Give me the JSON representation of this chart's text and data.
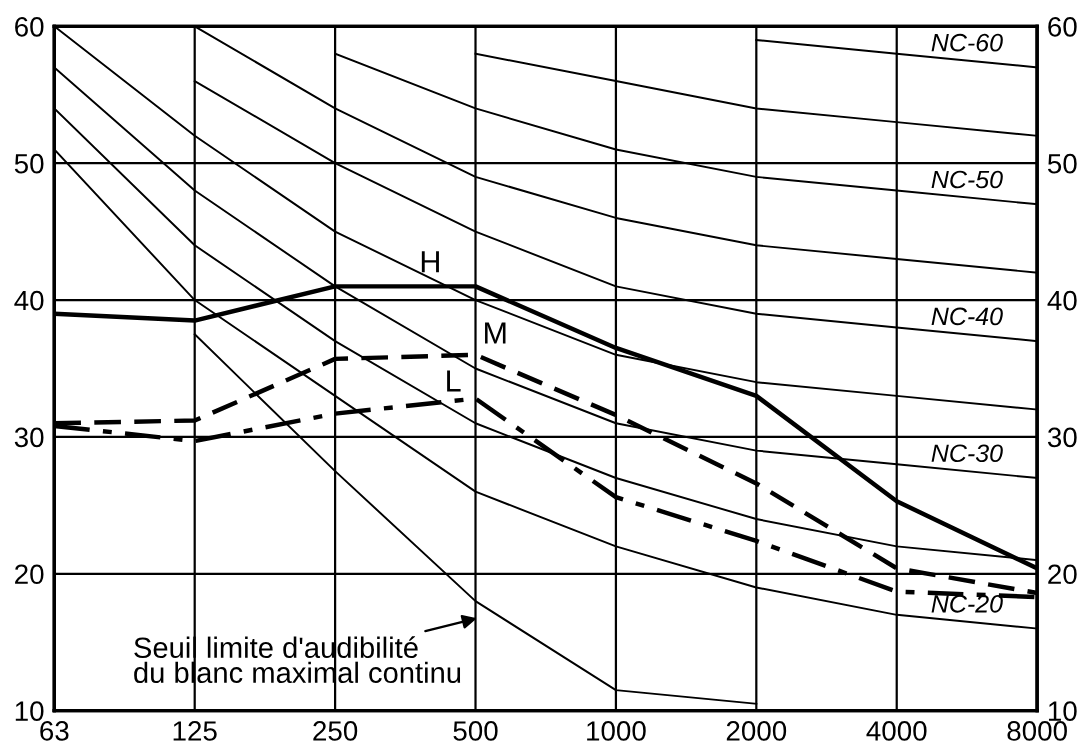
{
  "chart_data": {
    "type": "line",
    "categories": [
      "63",
      "125",
      "250",
      "500",
      "1000",
      "2000",
      "4000",
      "8000"
    ],
    "series": [
      {
        "name": "NC-20",
        "color": "#000000",
        "values": [
          51,
          40,
          33,
          26,
          22,
          19,
          17,
          16
        ]
      },
      {
        "color": "#000000",
        "values": [
          54,
          44,
          37,
          31,
          27,
          24,
          22,
          21
        ]
      },
      {
        "name": "NC-30",
        "color": "#000000",
        "values": [
          57,
          48,
          41,
          35,
          31,
          29,
          28,
          27
        ]
      },
      {
        "color": "#000000",
        "values": [
          60,
          52,
          45,
          40,
          36,
          34,
          33,
          32
        ]
      },
      {
        "name": "NC-40",
        "color": "#000000",
        "values": [
          null,
          56,
          50,
          45,
          41,
          39,
          38,
          37
        ]
      },
      {
        "color": "#000000",
        "values": [
          null,
          60,
          54,
          49,
          46,
          44,
          43,
          42
        ]
      },
      {
        "name": "NC-50",
        "color": "#000000",
        "values": [
          null,
          null,
          58,
          54,
          51,
          49,
          48,
          47
        ]
      },
      {
        "color": "#000000",
        "values": [
          null,
          null,
          null,
          58,
          56,
          54,
          53,
          52
        ]
      },
      {
        "name": "NC-60",
        "color": "#000000",
        "values": [
          null,
          null,
          null,
          null,
          null,
          59,
          58,
          57
        ]
      },
      {
        "color": "#000000",
        "values": [
          null,
          37.5,
          27.5,
          18,
          11.5,
          10.5,
          null,
          null
        ]
      },
      {
        "name": "H",
        "color": "#000000",
        "line_style": "solid",
        "values": [
          39,
          38.5,
          41,
          41,
          36.5,
          33,
          25.3,
          20.4
        ]
      },
      {
        "name": "M",
        "color": "#000000",
        "line_style": "dashed",
        "values": [
          31,
          31.2,
          35.7,
          36,
          31.6,
          26.6,
          20.4,
          18.6
        ]
      },
      {
        "name": "L",
        "color": "#000000",
        "line_style": "dashdot",
        "values": [
          30.8,
          29.7,
          31.7,
          32.8,
          25.6,
          22.4,
          18.7,
          18.3
        ]
      }
    ],
    "ylim": [
      10,
      60
    ],
    "yticks": [
      10,
      20,
      30,
      40,
      50,
      60
    ],
    "y2lim": [
      10,
      60
    ],
    "y2ticks": [
      10,
      20,
      30,
      40,
      50,
      60
    ],
    "grid": true,
    "marker": "none",
    "annotations": [
      "Seuil limite d'audibilité\ndu blanc maximal continu"
    ]
  }
}
